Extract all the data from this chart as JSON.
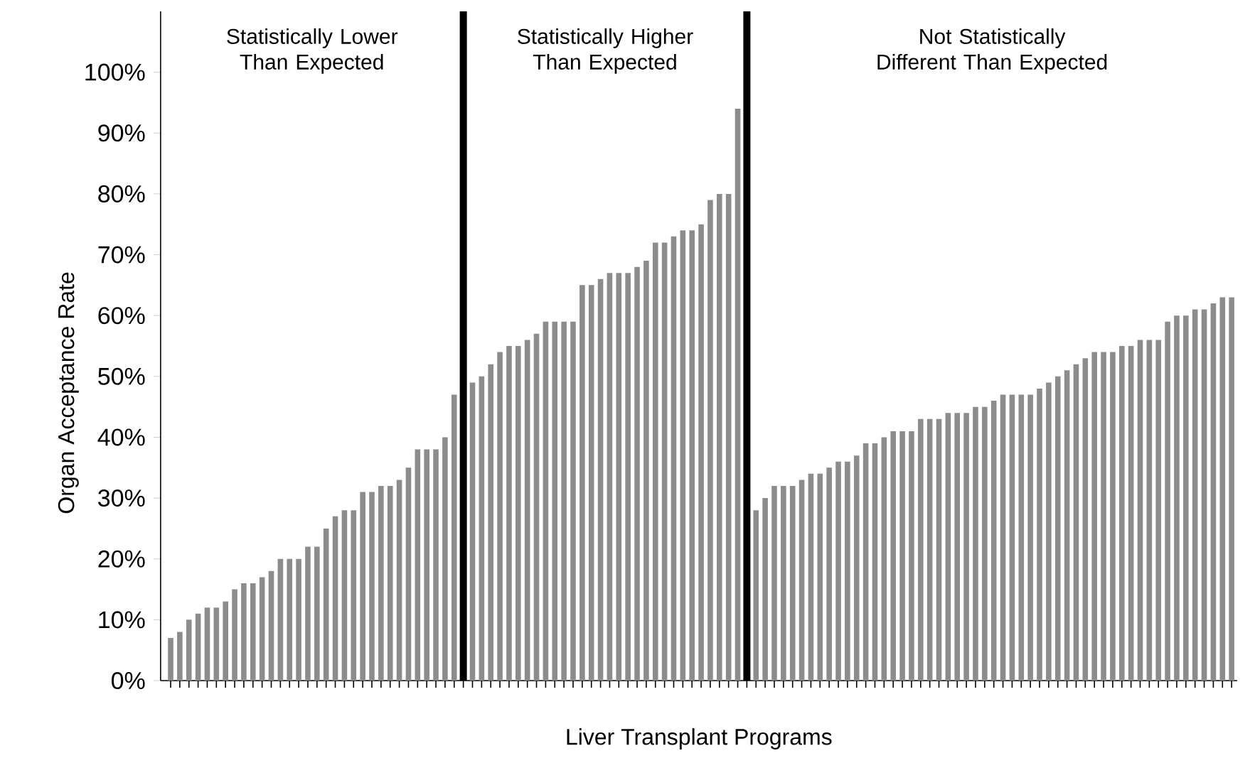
{
  "chart_data": {
    "type": "bar",
    "xlabel": "Liver Transplant Programs",
    "ylabel": "Organ Acceptance Rate",
    "categories": [
      null,
      null,
      null,
      null,
      null,
      null,
      null,
      null,
      null,
      null,
      null,
      null,
      null,
      null,
      null,
      null,
      null,
      null,
      null,
      null,
      null,
      null,
      null,
      null,
      null,
      null,
      null,
      null,
      null,
      null,
      null,
      null,
      null,
      null,
      null,
      null,
      null,
      null,
      null,
      null,
      null,
      null,
      null,
      null,
      null,
      null,
      null,
      null,
      null,
      null,
      null,
      null,
      null,
      null,
      null,
      null,
      null,
      null,
      null,
      null,
      null,
      null,
      null,
      null,
      null,
      null,
      null,
      null,
      null,
      null,
      null,
      null,
      null,
      null,
      null,
      null,
      null,
      null,
      null,
      null,
      null,
      null,
      null,
      null,
      null,
      null,
      null,
      null,
      null,
      null,
      null,
      null,
      null,
      null,
      null,
      null,
      null,
      null,
      null,
      null,
      null,
      null,
      null,
      null,
      null,
      null,
      null,
      null,
      null,
      null,
      null,
      null,
      null,
      null,
      null,
      null,
      null
    ],
    "values": [
      7,
      8,
      10,
      11,
      12,
      12,
      13,
      15,
      16,
      16,
      17,
      18,
      20,
      20,
      20,
      22,
      22,
      25,
      27,
      28,
      28,
      31,
      31,
      32,
      32,
      33,
      35,
      38,
      38,
      38,
      40,
      47,
      null,
      49,
      50,
      52,
      54,
      55,
      55,
      56,
      57,
      59,
      59,
      59,
      59,
      65,
      65,
      66,
      67,
      67,
      67,
      68,
      69,
      72,
      72,
      73,
      74,
      74,
      75,
      79,
      80,
      80,
      94,
      null,
      28,
      30,
      32,
      32,
      32,
      33,
      34,
      34,
      35,
      36,
      36,
      37,
      39,
      39,
      40,
      41,
      41,
      41,
      43,
      43,
      43,
      44,
      44,
      44,
      45,
      45,
      46,
      47,
      47,
      47,
      47,
      48,
      49,
      50,
      51,
      52,
      53,
      54,
      54,
      54,
      55,
      55,
      56,
      56,
      56,
      59,
      60,
      60,
      61,
      61,
      62,
      63,
      63
    ],
    "color": "#8c8c8c",
    "ylim": [
      0,
      110
    ],
    "yticks": [
      {
        "value": 0,
        "label": "0%"
      },
      {
        "value": 10,
        "label": "10%"
      },
      {
        "value": 20,
        "label": "20%"
      },
      {
        "value": 30,
        "label": "30%"
      },
      {
        "value": 40,
        "label": "40%"
      },
      {
        "value": 50,
        "label": "50%"
      },
      {
        "value": 60,
        "label": "60%"
      },
      {
        "value": 70,
        "label": "70%"
      },
      {
        "value": 80,
        "label": "80%"
      },
      {
        "value": 90,
        "label": "90%"
      },
      {
        "value": 100,
        "label": "100%"
      }
    ],
    "annotations": [
      "Statistically Lower Than Expected",
      "Statistically Higher Than Expected",
      "Not Statistically Different Than Expected"
    ],
    "grid": false
  }
}
